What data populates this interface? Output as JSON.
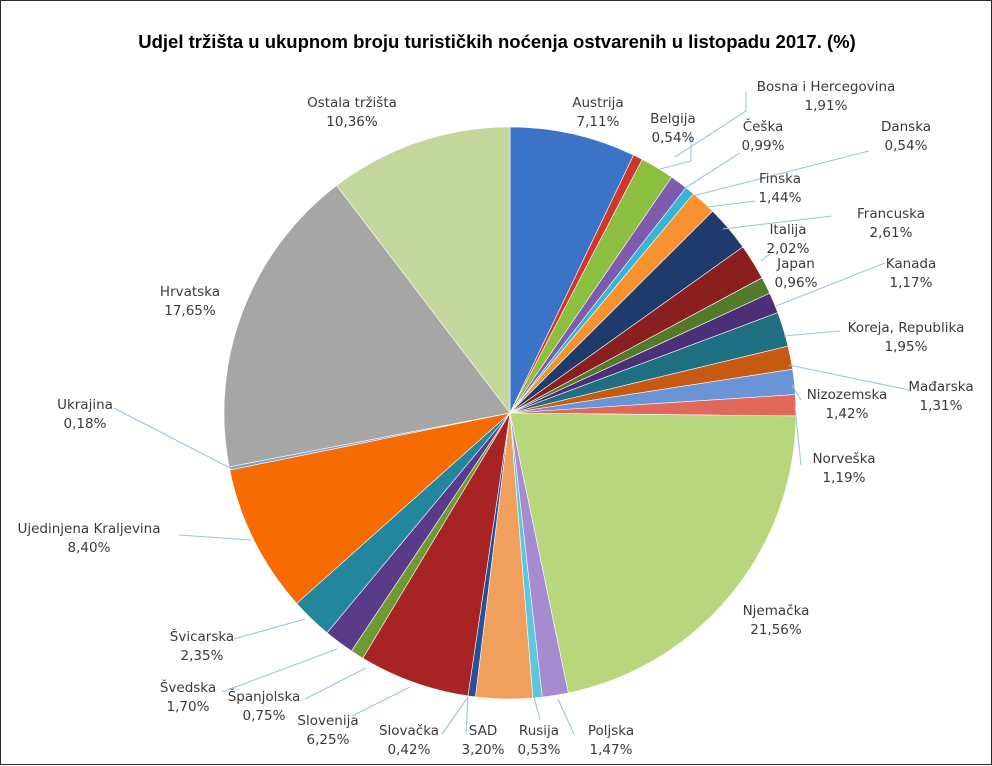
{
  "chart_data": {
    "type": "pie",
    "title": "Udjel tržišta u ukupnom broju turističkih noćenja ostvarenih u listopadu 2017. (%)",
    "slices": [
      {
        "label": "Austrija",
        "value": 7.11,
        "display": "7,11%",
        "color": "#3b74c6"
      },
      {
        "label": "Belgija",
        "value": 0.54,
        "display": "0,54%",
        "color": "#d0362b"
      },
      {
        "label": "Bosna i Hercegovina",
        "value": 1.91,
        "display": "1,91%",
        "color": "#8cbf3f"
      },
      {
        "label": "Češka",
        "value": 0.99,
        "display": "0,99%",
        "color": "#7f5bb0"
      },
      {
        "label": "Danska",
        "value": 0.54,
        "display": "0,54%",
        "color": "#36b6d2"
      },
      {
        "label": "Finska",
        "value": 1.44,
        "display": "1,44%",
        "color": "#f7922f"
      },
      {
        "label": "Francuska",
        "value": 2.61,
        "display": "2,61%",
        "color": "#1f3b6c"
      },
      {
        "label": "Italija",
        "value": 2.02,
        "display": "2,02%",
        "color": "#8a1f1f"
      },
      {
        "label": "Japan",
        "value": 0.96,
        "display": "0,96%",
        "color": "#537a2a"
      },
      {
        "label": "Kanada",
        "value": 1.17,
        "display": "1,17%",
        "color": "#4b2f77"
      },
      {
        "label": "Koreja, Republika",
        "value": 1.95,
        "display": "1,95%",
        "color": "#1f6f82"
      },
      {
        "label": "Mađarska",
        "value": 1.31,
        "display": "1,31%",
        "color": "#c75a12"
      },
      {
        "label": "Nizozemska",
        "value": 1.42,
        "display": "1,42%",
        "color": "#6b94d6"
      },
      {
        "label": "Norveška",
        "value": 1.19,
        "display": "1,19%",
        "color": "#e0695c"
      },
      {
        "label": "Njemačka",
        "value": 21.56,
        "display": "21,56%",
        "color": "#b8d77c"
      },
      {
        "label": "Poljska",
        "value": 1.47,
        "display": "1,47%",
        "color": "#a78bd0"
      },
      {
        "label": "Rusija",
        "value": 0.53,
        "display": "0,53%",
        "color": "#5cc6dc"
      },
      {
        "label": "SAD",
        "value": 3.2,
        "display": "3,20%",
        "color": "#f0a05c"
      },
      {
        "label": "Slovačka",
        "value": 0.42,
        "display": "0,42%",
        "color": "#2b4f96"
      },
      {
        "label": "Slovenija",
        "value": 6.25,
        "display": "6,25%",
        "color": "#a82424"
      },
      {
        "label": "Španjolska",
        "value": 0.75,
        "display": "0,75%",
        "color": "#6f9a32"
      },
      {
        "label": "Švedska",
        "value": 1.7,
        "display": "1,70%",
        "color": "#5a3b8a"
      },
      {
        "label": "Švicarska",
        "value": 2.35,
        "display": "2,35%",
        "color": "#22879c"
      },
      {
        "label": "Ujedinjena Kraljevina",
        "value": 8.4,
        "display": "8,40%",
        "color": "#f66c00"
      },
      {
        "label": "Ukrajina",
        "value": 0.18,
        "display": "0,18%",
        "color": "#7aa0d4"
      },
      {
        "label": "Hrvatska",
        "value": 17.65,
        "display": "17,65%",
        "color": "#a6a6a6"
      },
      {
        "label": "Ostala tržišta",
        "value": 10.36,
        "display": "10,36%",
        "color": "#c3d69b"
      }
    ]
  }
}
